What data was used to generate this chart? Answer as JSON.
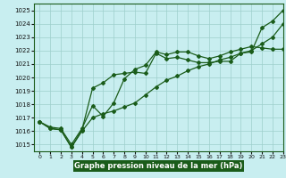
{
  "xlabel": "Graphe pression niveau de la mer (hPa)",
  "xlim": [
    -0.5,
    23
  ],
  "ylim": [
    1014.5,
    1025.5
  ],
  "yticks": [
    1015,
    1016,
    1017,
    1018,
    1019,
    1020,
    1021,
    1022,
    1023,
    1024,
    1025
  ],
  "xticks": [
    0,
    1,
    2,
    3,
    4,
    5,
    6,
    7,
    8,
    9,
    10,
    11,
    12,
    13,
    14,
    15,
    16,
    17,
    18,
    19,
    20,
    21,
    22,
    23
  ],
  "bg_color": "#c8eef0",
  "grid_color": "#9dcfcc",
  "line_color": "#1a5c1a",
  "line1_x": [
    0,
    1,
    2,
    3,
    4,
    5,
    6,
    7,
    8,
    9,
    10,
    11,
    12,
    13,
    14,
    15,
    16,
    17,
    18,
    19,
    20,
    21,
    22,
    23
  ],
  "line1_y": [
    1016.7,
    1016.2,
    1016.1,
    1014.8,
    1016.1,
    1019.2,
    1019.6,
    1020.2,
    1020.3,
    1020.4,
    1020.3,
    1021.8,
    1021.4,
    1021.5,
    1021.3,
    1021.1,
    1021.1,
    1021.2,
    1021.2,
    1021.8,
    1021.9,
    1023.7,
    1024.2,
    1025.0
  ],
  "line2_x": [
    0,
    1,
    2,
    3,
    4,
    5,
    6,
    7,
    8,
    9,
    10,
    11,
    12,
    13,
    14,
    15,
    16,
    17,
    18,
    19,
    20,
    21,
    22,
    23
  ],
  "line2_y": [
    1016.7,
    1016.2,
    1016.1,
    1014.8,
    1016.0,
    1017.0,
    1017.3,
    1017.5,
    1017.8,
    1018.1,
    1018.7,
    1019.3,
    1019.8,
    1020.1,
    1020.5,
    1020.8,
    1021.0,
    1021.3,
    1021.5,
    1021.8,
    1022.0,
    1022.5,
    1023.0,
    1024.0
  ],
  "line3_x": [
    0,
    1,
    2,
    3,
    4,
    5,
    6,
    7,
    8,
    9,
    10,
    11,
    12,
    13,
    14,
    15,
    16,
    17,
    18,
    19,
    20,
    21,
    22,
    23
  ],
  "line3_y": [
    1016.7,
    1016.3,
    1016.2,
    1015.0,
    1016.2,
    1017.9,
    1017.1,
    1018.1,
    1019.9,
    1020.6,
    1020.9,
    1021.9,
    1021.7,
    1021.9,
    1021.9,
    1021.6,
    1021.4,
    1021.6,
    1021.9,
    1022.1,
    1022.3,
    1022.2,
    1022.1,
    1022.1
  ]
}
